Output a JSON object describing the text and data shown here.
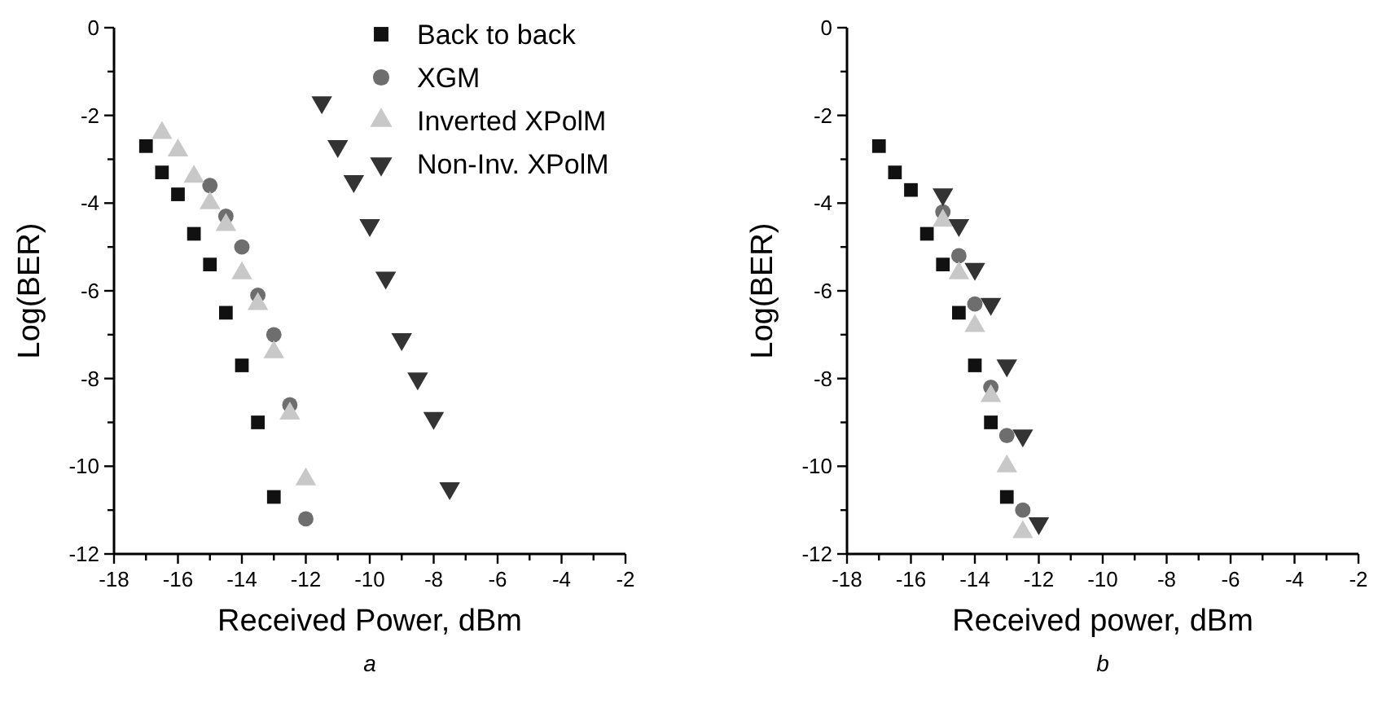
{
  "chart_data": [
    {
      "type": "scatter",
      "xlabel": "Received Power, dBm",
      "ylabel": "Log(BER)",
      "annotations": [
        "a"
      ],
      "xlim": [
        -18,
        -2
      ],
      "ylim": [
        -12,
        0
      ],
      "legend": "top right",
      "xticks": [
        -18,
        {
          "value": -17,
          "label": null
        },
        -16,
        {
          "value": -15,
          "label": null
        },
        -14,
        {
          "value": -13,
          "label": null
        },
        -12,
        {
          "value": -11,
          "label": null
        },
        -10,
        {
          "value": -9,
          "label": null
        },
        -8,
        {
          "value": -7,
          "label": null
        },
        -6,
        {
          "value": -5,
          "label": null
        },
        -4,
        {
          "value": -3,
          "label": null
        },
        -2
      ],
      "yticks": [
        0,
        {
          "value": -1,
          "label": null
        },
        -2,
        {
          "value": -3,
          "label": null
        },
        -4,
        {
          "value": -5,
          "label": null
        },
        -6,
        {
          "value": -7,
          "label": null
        },
        -8,
        {
          "value": -9,
          "label": null
        },
        -10,
        {
          "value": -11,
          "label": null
        },
        -12
      ],
      "series": [
        {
          "name": "Back to back",
          "color": "#111111",
          "marker": "square",
          "x": [
            -17,
            -16.5,
            -16,
            -15.5,
            -15,
            -14.5,
            -14,
            -13.5,
            -13
          ],
          "values": [
            -2.7,
            -3.3,
            -3.8,
            -4.7,
            -5.4,
            -6.5,
            -7.7,
            -9.0,
            -10.7
          ]
        },
        {
          "name": "XGM",
          "color": "#6e6e6e",
          "marker": "circle",
          "x": [
            -15,
            -14.5,
            -14,
            -13.5,
            -13,
            -12.5,
            -12
          ],
          "values": [
            -3.6,
            -4.3,
            -5.0,
            -6.1,
            -7.0,
            -8.6,
            -11.2
          ]
        },
        {
          "name": "Inverted XPolM",
          "color": "#c8c8c8",
          "marker": "triangle",
          "x": [
            -16.5,
            -16,
            -15.5,
            -15,
            -14.5,
            -14,
            -13.5,
            -13,
            -12.5,
            -12
          ],
          "values": [
            -2.4,
            -2.8,
            -3.4,
            -4.0,
            -4.5,
            -5.6,
            -6.3,
            -7.4,
            -8.8,
            -10.3
          ]
        },
        {
          "name": "Non-Inv. XPolM",
          "color": "#333333",
          "marker": "triangle-down",
          "x": [
            -11.5,
            -11,
            -10.5,
            -10,
            -9.5,
            -9,
            -8.5,
            -8,
            -7.5
          ],
          "values": [
            -1.7,
            -2.7,
            -3.5,
            -4.5,
            -5.7,
            -7.1,
            -8.0,
            -8.9,
            -10.5
          ]
        }
      ]
    },
    {
      "type": "scatter",
      "xlabel": "Received power, dBm",
      "ylabel": "Log(BER)",
      "annotations": [
        "b"
      ],
      "xlim": [
        -18,
        -2
      ],
      "ylim": [
        -12,
        0
      ],
      "xticks": [
        -18,
        {
          "value": -17,
          "label": null
        },
        -16,
        {
          "value": -15,
          "label": null
        },
        -14,
        {
          "value": -13,
          "label": null
        },
        -12,
        {
          "value": -11,
          "label": null
        },
        -10,
        {
          "value": -9,
          "label": null
        },
        -8,
        {
          "value": -7,
          "label": null
        },
        -6,
        {
          "value": -5,
          "label": null
        },
        -4,
        {
          "value": -3,
          "label": null
        },
        -2
      ],
      "yticks": [
        0,
        {
          "value": -1,
          "label": null
        },
        -2,
        {
          "value": -3,
          "label": null
        },
        -4,
        {
          "value": -5,
          "label": null
        },
        -6,
        {
          "value": -7,
          "label": null
        },
        -8,
        {
          "value": -9,
          "label": null
        },
        -10,
        {
          "value": -11,
          "label": null
        },
        -12
      ],
      "series": [
        {
          "color": "#111111",
          "marker": "square",
          "x": [
            -17,
            -16.5,
            -16,
            -15.5,
            -15,
            -14.5,
            -14,
            -13.5,
            -13
          ],
          "values": [
            -2.7,
            -3.3,
            -3.7,
            -4.7,
            -5.4,
            -6.5,
            -7.7,
            -9.0,
            -10.7
          ]
        },
        {
          "color": "#6e6e6e",
          "marker": "circle",
          "x": [
            -15,
            -14.5,
            -14,
            -13.5,
            -13,
            -12.5
          ],
          "values": [
            -4.2,
            -5.2,
            -6.3,
            -8.2,
            -9.3,
            -11.0
          ]
        },
        {
          "color": "#c8c8c8",
          "marker": "triangle",
          "x": [
            -15,
            -14.5,
            -14,
            -13.5,
            -13,
            -12.5
          ],
          "values": [
            -4.4,
            -5.6,
            -6.8,
            -8.4,
            -10.0,
            -11.5
          ]
        },
        {
          "color": "#333333",
          "marker": "triangle-down",
          "x": [
            -15,
            -14.5,
            -14,
            -13.5,
            -13,
            -12.5,
            -12
          ],
          "values": [
            -3.8,
            -4.5,
            -5.5,
            -6.3,
            -7.7,
            -9.3,
            -11.3
          ]
        }
      ]
    }
  ]
}
